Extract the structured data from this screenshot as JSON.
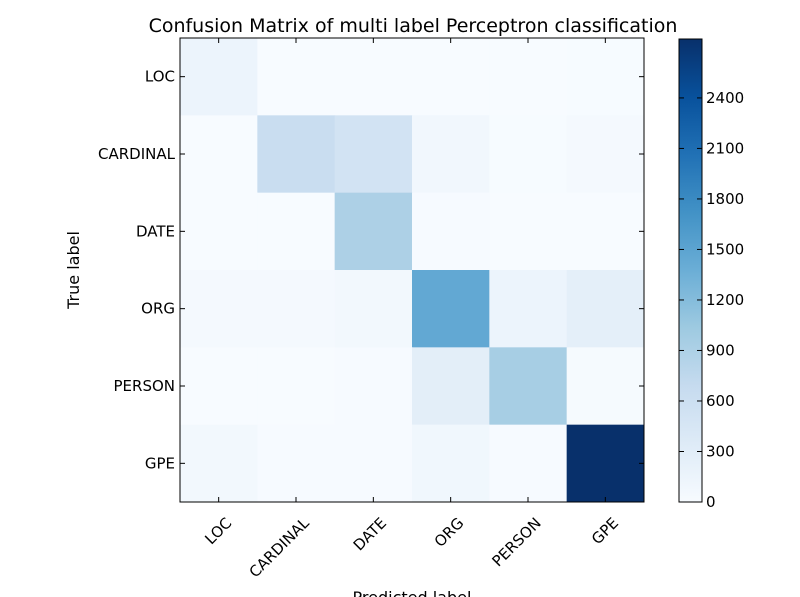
{
  "chart_data": {
    "type": "heatmap",
    "title": "Confusion Matrix of multi label Perceptron classification",
    "xlabel": "Predicted label",
    "ylabel": "True label",
    "x_categories": [
      "LOC",
      "CARDINAL",
      "DATE",
      "ORG",
      "PERSON",
      "GPE"
    ],
    "y_categories": [
      "LOC",
      "CARDINAL",
      "DATE",
      "ORG",
      "PERSON",
      "GPE"
    ],
    "values": [
      [
        150,
        5,
        5,
        5,
        5,
        10
      ],
      [
        5,
        650,
        520,
        80,
        10,
        40
      ],
      [
        5,
        5,
        900,
        15,
        5,
        5
      ],
      [
        40,
        35,
        70,
        1450,
        150,
        260
      ],
      [
        5,
        5,
        20,
        280,
        950,
        30
      ],
      [
        70,
        20,
        20,
        90,
        20,
        2750
      ]
    ],
    "colorbar": {
      "min": 0,
      "max": 2750,
      "ticks": [
        0,
        300,
        600,
        900,
        1200,
        1500,
        1800,
        2100,
        2400
      ]
    },
    "colormap": "Blues",
    "grid": false
  }
}
